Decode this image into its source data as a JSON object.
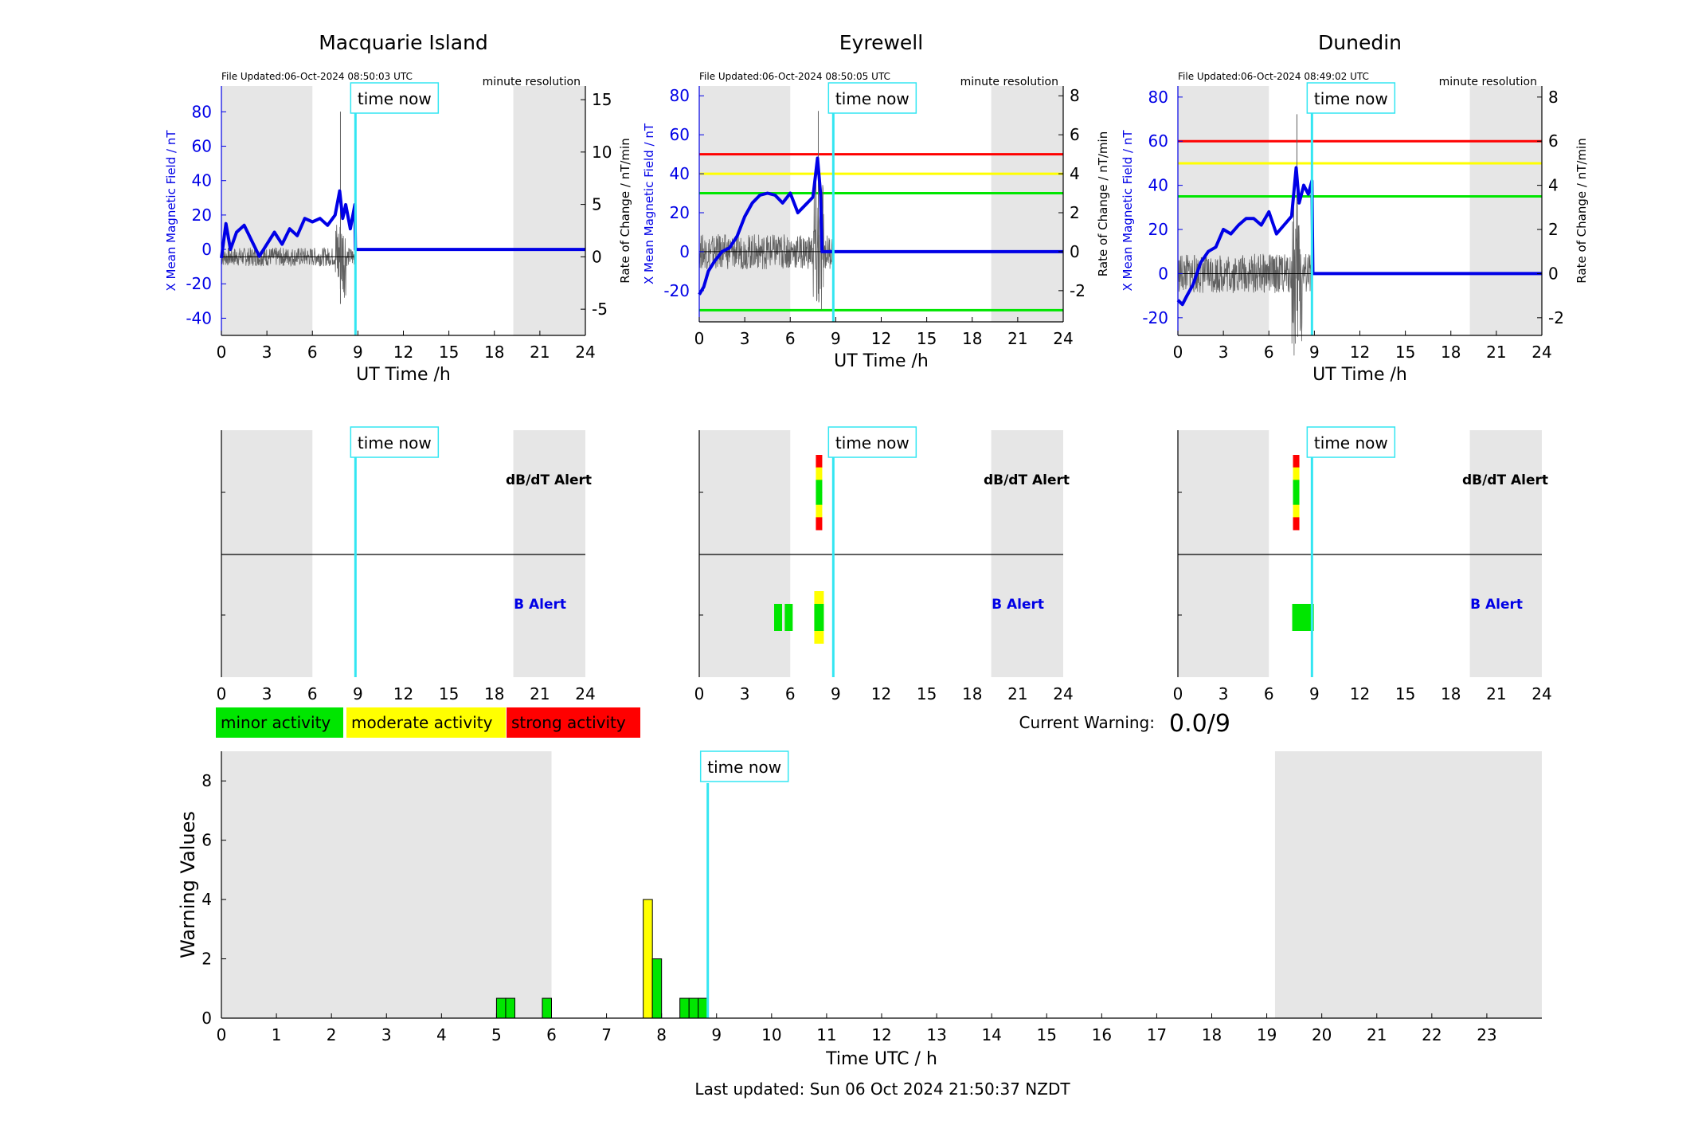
{
  "colors": {
    "bfield": "#0000e6",
    "rate": "#606060",
    "night": "#e6e6e6",
    "timenow": "#33e6f2",
    "minor": "#00e600",
    "moderate": "#ffff00",
    "strong": "#ff0000",
    "threshold_red": "#ff0000",
    "threshold_yellow": "#ffff00",
    "threshold_green": "#00e600",
    "b_alert_label": "#0000e6",
    "dbdt_alert_label": "#000000"
  },
  "shared": {
    "time_now_label": "time now",
    "xlabel": "UT Time /h",
    "resolution": "minute resolution",
    "ylabel_left": "X Mean Magnetic Field / nT",
    "ylabel_right": "Rate of Change / nT/min",
    "time_now_h": 8.84,
    "night_intervals": [
      [
        0,
        6
      ],
      [
        19.25,
        24
      ]
    ],
    "x_ticks": [
      0,
      3,
      6,
      9,
      12,
      15,
      18,
      21,
      24
    ],
    "dbdt_alert_label": "dB/dT Alert",
    "b_alert_label": "B Alert"
  },
  "stations": [
    {
      "name": "Macquarie Island",
      "file_updated": "File Updated:06-Oct-2024 08:50:03 UTC",
      "ylim_left": [
        -50,
        95
      ],
      "yticks_left": [
        -40,
        -20,
        0,
        20,
        40,
        60,
        80
      ],
      "ylim_right": [
        -7.5,
        16.3
      ],
      "yticks_right": [
        -5,
        0,
        5,
        10,
        15
      ],
      "thresholds": [],
      "b_x": [
        0,
        0.3,
        0.6,
        1.0,
        1.5,
        2.0,
        2.5,
        3.0,
        3.5,
        4.0,
        4.5,
        5.0,
        5.5,
        6.0,
        6.5,
        7.0,
        7.5,
        7.8,
        8.0,
        8.2,
        8.5,
        8.8,
        8.84,
        24
      ],
      "b_y": [
        -5,
        15,
        0,
        10,
        14,
        5,
        -4,
        3,
        10,
        3,
        12,
        8,
        18,
        16,
        18,
        14,
        20,
        34,
        18,
        26,
        12,
        26,
        0,
        0
      ],
      "alerts_dbdt": [],
      "alerts_b": []
    },
    {
      "name": "Eyrewell",
      "file_updated": "File Updated:06-Oct-2024 08:50:05 UTC",
      "ylim_left": [
        -36,
        85
      ],
      "yticks_left": [
        -20,
        0,
        20,
        40,
        60,
        80
      ],
      "ylim_right": [
        -3.6,
        8.5
      ],
      "yticks_right": [
        -2,
        0,
        2,
        4,
        6,
        8
      ],
      "thresholds": [
        {
          "value": 50,
          "color": "threshold_red"
        },
        {
          "value": 40,
          "color": "threshold_yellow"
        },
        {
          "value": 30,
          "color": "threshold_green"
        },
        {
          "value": -30,
          "color": "threshold_green"
        }
      ],
      "b_x": [
        0,
        0.3,
        0.6,
        1.0,
        1.5,
        2.0,
        2.5,
        3.0,
        3.5,
        4.0,
        4.5,
        5.0,
        5.5,
        6.0,
        6.5,
        7.0,
        7.5,
        7.8,
        8.0,
        8.1,
        8.84,
        24
      ],
      "b_y": [
        -22,
        -18,
        -10,
        -5,
        0,
        2,
        8,
        18,
        25,
        29,
        30,
        29,
        25,
        30,
        20,
        24,
        28,
        48,
        30,
        0,
        0,
        0
      ],
      "alerts_dbdt": [
        {
          "t": 7.9,
          "level": "strong"
        }
      ],
      "alerts_b": [
        {
          "t": 5.2,
          "level": "minor"
        },
        {
          "t": 5.9,
          "level": "minor"
        },
        {
          "t": 7.9,
          "level": "moderate"
        }
      ]
    },
    {
      "name": "Dunedin",
      "file_updated": "File Updated:06-Oct-2024 08:49:02 UTC",
      "ylim_left": [
        -28,
        85
      ],
      "yticks_left": [
        -20,
        0,
        20,
        40,
        60,
        80
      ],
      "ylim_right": [
        -2.8,
        8.5
      ],
      "yticks_right": [
        -2,
        0,
        2,
        4,
        6,
        8
      ],
      "thresholds": [
        {
          "value": 60,
          "color": "threshold_red"
        },
        {
          "value": 50,
          "color": "threshold_yellow"
        },
        {
          "value": 35,
          "color": "threshold_green"
        }
      ],
      "b_x": [
        0,
        0.3,
        0.6,
        1.0,
        1.5,
        2.0,
        2.5,
        3.0,
        3.5,
        4.0,
        4.5,
        5.0,
        5.5,
        6.0,
        6.5,
        7.0,
        7.5,
        7.8,
        8.0,
        8.3,
        8.6,
        8.84,
        8.9,
        24
      ],
      "b_y": [
        -12,
        -14,
        -10,
        -5,
        5,
        10,
        12,
        20,
        18,
        22,
        25,
        25,
        22,
        28,
        18,
        22,
        26,
        48,
        32,
        40,
        36,
        42,
        0,
        0
      ],
      "alerts_dbdt": [
        {
          "t": 7.8,
          "level": "strong"
        }
      ],
      "alerts_b": [
        {
          "t": 7.8,
          "level": "minor"
        },
        {
          "t": 8.3,
          "level": "minor"
        },
        {
          "t": 8.7,
          "level": "minor"
        }
      ]
    }
  ],
  "legend": {
    "minor": "minor activity",
    "moderate": "moderate activity",
    "strong": "strong activity"
  },
  "current_warning": {
    "label": "Current Warning:",
    "value": "0.0/9"
  },
  "chart_data": {
    "type": "bar",
    "xlabel": "Time UTC / h",
    "ylabel": "Warning Values",
    "xlim": [
      0,
      24
    ],
    "ylim": [
      0,
      9
    ],
    "x_ticks": [
      0,
      1,
      2,
      3,
      4,
      5,
      6,
      7,
      8,
      9,
      10,
      11,
      12,
      13,
      14,
      15,
      16,
      17,
      18,
      19,
      20,
      21,
      22,
      23
    ],
    "y_ticks": [
      0,
      2,
      4,
      6,
      8
    ],
    "night_intervals": [
      [
        0,
        6
      ],
      [
        19.15,
        24
      ]
    ],
    "time_now_h": 8.84,
    "bar_width_h": 0.167,
    "bars": [
      {
        "t": 5.0,
        "value": 0.67,
        "level": "minor"
      },
      {
        "t": 5.167,
        "value": 0.67,
        "level": "minor"
      },
      {
        "t": 5.833,
        "value": 0.67,
        "level": "minor"
      },
      {
        "t": 7.667,
        "value": 4,
        "level": "moderate"
      },
      {
        "t": 7.833,
        "value": 2,
        "level": "minor"
      },
      {
        "t": 8.333,
        "value": 0.67,
        "level": "minor"
      },
      {
        "t": 8.5,
        "value": 0.67,
        "level": "minor"
      },
      {
        "t": 8.667,
        "value": 0.67,
        "level": "minor"
      }
    ]
  },
  "footer": {
    "last_updated": "Last updated: Sun 06 Oct 2024 21:50:37 NZDT"
  }
}
